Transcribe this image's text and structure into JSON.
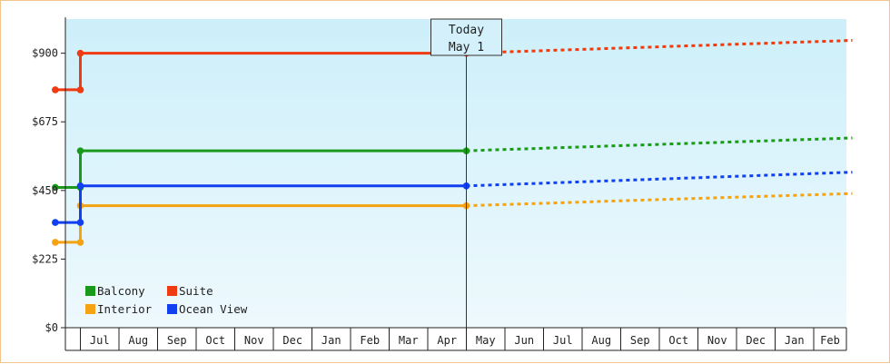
{
  "chart_data": {
    "type": "line",
    "y_unit_prefix": "$",
    "ylim": [
      0,
      1012
    ],
    "yticks": [
      0,
      225,
      450,
      675,
      900
    ],
    "ytick_labels": [
      "$0",
      "$225",
      "$450",
      "$675",
      "$900"
    ],
    "x_labels": [
      "Jul",
      "Aug",
      "Sep",
      "Oct",
      "Nov",
      "Dec",
      "Jan",
      "Feb",
      "Mar",
      "Apr",
      "May",
      "Jun",
      "Jul",
      "Aug",
      "Sep",
      "Oct",
      "Nov",
      "Dec",
      "Jan",
      "Feb"
    ],
    "today_marker": {
      "line1": "Today",
      "line2": "May 1",
      "position": 10.0
    },
    "legend": {
      "placement": "bottom-left"
    },
    "grid": false,
    "background": {
      "top": "#cdeffa",
      "bottom": "#eef9fd"
    },
    "series": [
      {
        "name": "Balcony",
        "color": "#1a9a1a",
        "points": [
          [
            -0.65,
            460
          ],
          [
            0.0,
            460
          ],
          [
            0.0,
            580
          ],
          [
            10.0,
            580
          ]
        ],
        "forecast": [
          [
            10.0,
            580
          ],
          [
            20.0,
            622
          ]
        ]
      },
      {
        "name": "Suite",
        "color": "#f03a10",
        "points": [
          [
            -0.65,
            780
          ],
          [
            0.0,
            780
          ],
          [
            0.0,
            900
          ],
          [
            10.0,
            900
          ]
        ],
        "forecast": [
          [
            10.0,
            900
          ],
          [
            20.0,
            942
          ]
        ]
      },
      {
        "name": "Interior",
        "color": "#f5a312",
        "points": [
          [
            -0.65,
            280
          ],
          [
            0.0,
            280
          ],
          [
            0.0,
            400
          ],
          [
            10.0,
            400
          ]
        ],
        "forecast": [
          [
            10.0,
            400
          ],
          [
            20.0,
            440
          ]
        ]
      },
      {
        "name": "Ocean View",
        "color": "#1040f0",
        "points": [
          [
            -0.65,
            345
          ],
          [
            0.0,
            345
          ],
          [
            0.0,
            465
          ],
          [
            10.0,
            465
          ]
        ],
        "forecast": [
          [
            10.0,
            465
          ],
          [
            20.0,
            510
          ]
        ]
      }
    ]
  }
}
